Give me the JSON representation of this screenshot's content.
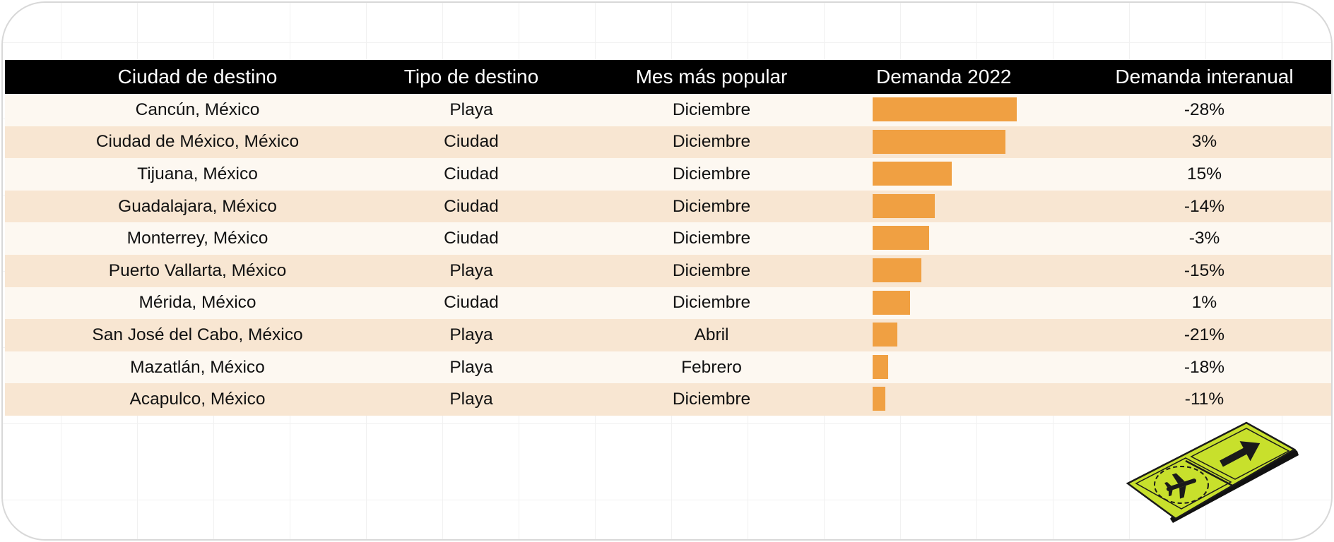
{
  "chart_data": {
    "type": "table",
    "columns": [
      "Ciudad de destino",
      "Tipo de destino",
      "Mes más popular",
      "Demanda 2022",
      "Demanda interanual"
    ],
    "rows": [
      {
        "city": "Cancún, México",
        "type": "Playa",
        "month": "Diciembre",
        "demand": 100,
        "yoy": "-28%"
      },
      {
        "city": "Ciudad de México, México",
        "type": "Ciudad",
        "month": "Diciembre",
        "demand": 92,
        "yoy": "3%"
      },
      {
        "city": "Tijuana, México",
        "type": "Ciudad",
        "month": "Diciembre",
        "demand": 55,
        "yoy": "15%"
      },
      {
        "city": "Guadalajara, México",
        "type": "Ciudad",
        "month": "Diciembre",
        "demand": 43,
        "yoy": "-14%"
      },
      {
        "city": "Monterrey, México",
        "type": "Ciudad",
        "month": "Diciembre",
        "demand": 39,
        "yoy": "-3%"
      },
      {
        "city": "Puerto Vallarta, México",
        "type": "Playa",
        "month": "Diciembre",
        "demand": 34,
        "yoy": "-15%"
      },
      {
        "city": "Mérida, México",
        "type": "Ciudad",
        "month": "Diciembre",
        "demand": 26,
        "yoy": "1%"
      },
      {
        "city": "San José del Cabo, México",
        "type": "Playa",
        "month": "Abril",
        "demand": 17,
        "yoy": "-21%"
      },
      {
        "city": "Mazatlán, México",
        "type": "Playa",
        "month": "Febrero",
        "demand": 11,
        "yoy": "-18%"
      },
      {
        "city": "Acapulco, México",
        "type": "Playa",
        "month": "Diciembre",
        "demand": 9,
        "yoy": "-11%"
      }
    ],
    "demand_max": 100,
    "bar_color": "#f0a042",
    "header_color": "#000000",
    "row_colors": [
      "#fdf8f1",
      "#f8e6d2"
    ]
  },
  "decoration": {
    "icon": "airport-sign-icon",
    "sign_color": "#c8e02c"
  }
}
